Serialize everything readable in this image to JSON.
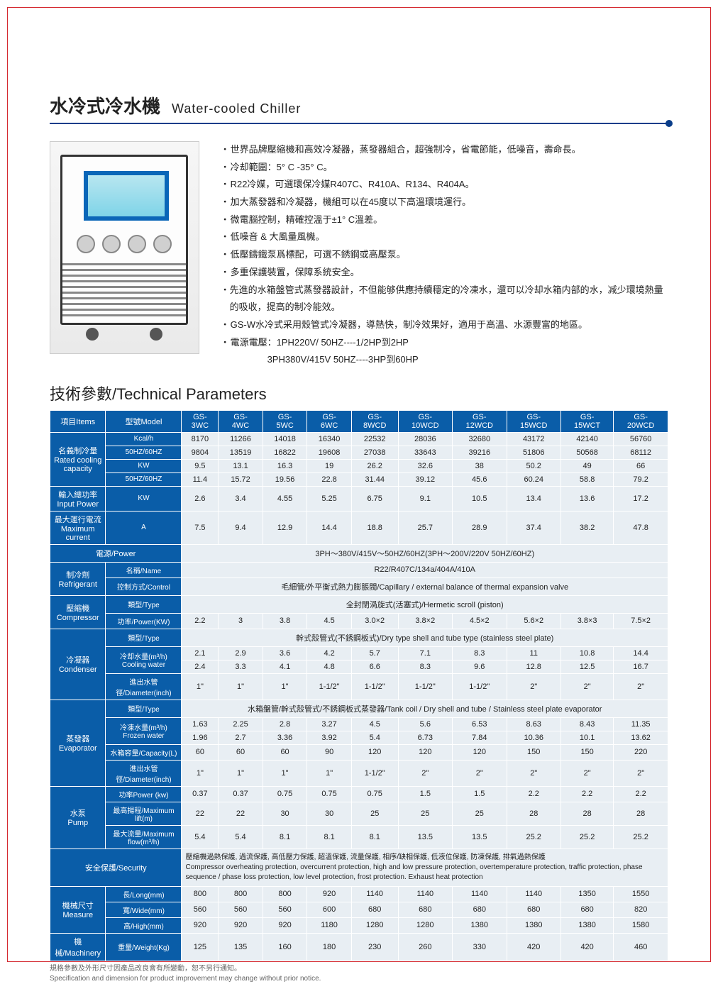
{
  "title": {
    "cn": "水冷式冷水機",
    "en": "Water-cooled Chiller"
  },
  "bullets": [
    "世界品牌壓縮機和高效冷凝器，蒸發器組合，超強制冷，省電節能，低噪音，壽命長。",
    "冷却範圍：5° C -35° C。",
    "R22冷媒，可選環保冷媒R407C、R410A、R134、R404A。",
    "加大蒸發器和冷凝器，機組可以在45度以下高溫環境運行。",
    "微電腦控制，精確控溫于±1° C溫差。",
    "低噪音 & 大風量風機。",
    "低壓鑄鐵泵爲標配，可選不銹鋼或高壓泵。",
    "多重保護裝置，保障系統安全。",
    "先進的水箱盤管式蒸發器設計，不但能够供應持續穩定的冷凍水，還可以冷却水箱内部的水，减少環境熱量的吸收，提高的制冷能效。",
    "GS-W水冷式采用殼管式冷凝器，導熱快，制冷效果好，適用于高溫、水源豐富的地區。",
    "電源電壓：1PH220V/ 50HZ----1/2HP到2HP"
  ],
  "bullet_indent": "3PH380V/415V 50HZ----3HP到60HP",
  "section": "技術參數/Technical Parameters",
  "header": {
    "items": "項目Items",
    "model": "型號Model"
  },
  "models": [
    "GS-3WC",
    "GS-4WC",
    "GS-5WC",
    "GS-6WC",
    "GS-8WCD",
    "GS-10WCD",
    "GS-12WCD",
    "GS-15WCD",
    "GS-15WCT",
    "GS-20WCD"
  ],
  "rows": {
    "cooling": {
      "label": "名義制冷量\nRated cooling\ncapacity",
      "sub1": "Kcal/h",
      "sub2": "50HZ/60HZ",
      "sub3": "KW",
      "sub4": "50HZ/60HZ",
      "r1": [
        "8170",
        "11266",
        "14018",
        "16340",
        "22532",
        "28036",
        "32680",
        "43172",
        "42140",
        "56760"
      ],
      "r2": [
        "9804",
        "13519",
        "16822",
        "19608",
        "27038",
        "33643",
        "39216",
        "51806",
        "50568",
        "68112"
      ],
      "r3": [
        "9.5",
        "13.1",
        "16.3",
        "19",
        "26.2",
        "32.6",
        "38",
        "50.2",
        "49",
        "66"
      ],
      "r4": [
        "11.4",
        "15.72",
        "19.56",
        "22.8",
        "31.44",
        "39.12",
        "45.6",
        "60.24",
        "58.8",
        "79.2"
      ]
    },
    "input": {
      "label": "輸入總功率\nInput Power",
      "unit": "KW",
      "vals": [
        "2.6",
        "3.4",
        "4.55",
        "5.25",
        "6.75",
        "9.1",
        "10.5",
        "13.4",
        "13.6",
        "17.2"
      ]
    },
    "maxcur": {
      "label": "最大運行電流\nMaximum current",
      "unit": "A",
      "vals": [
        "7.5",
        "9.4",
        "12.9",
        "14.4",
        "18.8",
        "25.7",
        "28.9",
        "37.4",
        "38.2",
        "47.8"
      ]
    },
    "power": {
      "label": "電源/Power",
      "text": "3PH～380V/415V～50HZ/60HZ(3PH～200V/220V  50HZ/60HZ)"
    },
    "refrig": {
      "label": "制冷劑\nRefrigerant",
      "name_lbl": "名稱/Name",
      "name_val": "R22/R407C/134a/404A/410A",
      "ctrl_lbl": "控制方式/Control",
      "ctrl_val": "毛細管/外平衡式熱力膨脹閥/Capillary / external balance of thermal expansion valve"
    },
    "comp": {
      "label": "壓縮機\nCompressor",
      "type_lbl": "類型/Type",
      "type_val": "全封閉渦旋式(活塞式)/Hermetic scroll (piston)",
      "pow_lbl": "功率/Power(KW)",
      "pow_vals": [
        "2.2",
        "3",
        "3.8",
        "4.5",
        "3.0×2",
        "3.8×2",
        "4.5×2",
        "5.6×2",
        "3.8×3",
        "7.5×2"
      ]
    },
    "cond": {
      "label": "冷凝器\nCondenser",
      "type_lbl": "類型/Type",
      "type_val": "幹式殼管式(不銹鋼板式)/Dry type shell and tube type (stainless steel plate)",
      "cw_lbl": "冷却水量(m³/h)\nCooling water",
      "cw1": [
        "2.1",
        "2.9",
        "3.6",
        "4.2",
        "5.7",
        "7.1",
        "8.3",
        "11",
        "10.8",
        "14.4"
      ],
      "cw2": [
        "2.4",
        "3.3",
        "4.1",
        "4.8",
        "6.6",
        "8.3",
        "9.6",
        "12.8",
        "12.5",
        "16.7"
      ],
      "dia_lbl": "進出水管徑/Diameter(inch)",
      "dia": [
        "1\"",
        "1\"",
        "1\"",
        "1-1/2\"",
        "1-1/2\"",
        "1-1/2\"",
        "1-1/2\"",
        "2\"",
        "2\"",
        "2\""
      ]
    },
    "evap": {
      "label": "蒸發器\nEvaporator",
      "type_lbl": "類型/Type",
      "type_val": "水箱盤管/幹式殼管式/不銹鋼板式蒸發器/Tank coil / Dry shell and tube / Stainless steel plate evaporator",
      "fw_lbl": "冷凍水量(m³/h)\nFrozen water",
      "fw1": [
        "1.63",
        "2.25",
        "2.8",
        "3.27",
        "4.5",
        "5.6",
        "6.53",
        "8.63",
        "8.43",
        "11.35"
      ],
      "fw2": [
        "1.96",
        "2.7",
        "3.36",
        "3.92",
        "5.4",
        "6.73",
        "7.84",
        "10.36",
        "10.1",
        "13.62"
      ],
      "cap_lbl": "水箱容量/Capacity(L)",
      "cap": [
        "60",
        "60",
        "60",
        "90",
        "120",
        "120",
        "120",
        "150",
        "150",
        "220"
      ],
      "dia_lbl": "進出水管徑/Diameter(inch)",
      "dia": [
        "1\"",
        "1\"",
        "1\"",
        "1\"",
        "1-1/2\"",
        "2\"",
        "2\"",
        "2\"",
        "2\"",
        "2\""
      ]
    },
    "pump": {
      "label": "水泵\nPump",
      "pow_lbl": "功率Power (kw)",
      "pow": [
        "0.37",
        "0.37",
        "0.75",
        "0.75",
        "0.75",
        "1.5",
        "1.5",
        "2.2",
        "2.2",
        "2.2"
      ],
      "lift_lbl": "最高揚程/Maximum lift(m)",
      "lift": [
        "22",
        "22",
        "30",
        "30",
        "25",
        "25",
        "25",
        "28",
        "28",
        "28"
      ],
      "flow_lbl": "最大流量/Maximum flow(m³/h)",
      "flow": [
        "5.4",
        "5.4",
        "8.1",
        "8.1",
        "8.1",
        "13.5",
        "13.5",
        "25.2",
        "25.2",
        "25.2"
      ]
    },
    "sec": {
      "label": "安全保護/Security",
      "text": "壓縮機過熱保護, 過流保護, 高低壓力保護, 超溫保護, 流量保護, 相序/缺相保護, 低液位保護, 防凍保護, 排氣過熱保護\nCompressor overheating protection, overcurrent protection, high and low pressure protection, overtemperature protection, traffic protection, phase sequence / phase loss protection, low level protection, frost protection. Exhaust heat protection"
    },
    "dim": {
      "label": "機械尺寸\nMeasure",
      "l_lbl": "長/Long(mm)",
      "l": [
        "800",
        "800",
        "800",
        "920",
        "1140",
        "1140",
        "1140",
        "1140",
        "1350",
        "1550"
      ],
      "w_lbl": "寬/Wide(mm)",
      "w": [
        "560",
        "560",
        "560",
        "600",
        "680",
        "680",
        "680",
        "680",
        "680",
        "820"
      ],
      "h_lbl": "高/High(mm)",
      "h": [
        "920",
        "920",
        "920",
        "1180",
        "1280",
        "1280",
        "1380",
        "1380",
        "1380",
        "1580"
      ]
    },
    "mach": {
      "label": "機械/Machinery",
      "wt_lbl": "重量/Weight(Kg)",
      "wt": [
        "125",
        "135",
        "160",
        "180",
        "230",
        "260",
        "330",
        "420",
        "420",
        "460"
      ]
    }
  },
  "footnote": {
    "cn": "規格參數及外形尺寸因產品改良會有所變動，恕不另行通知。",
    "en": "Specification and dimension for product improvement may change without prior notice."
  }
}
